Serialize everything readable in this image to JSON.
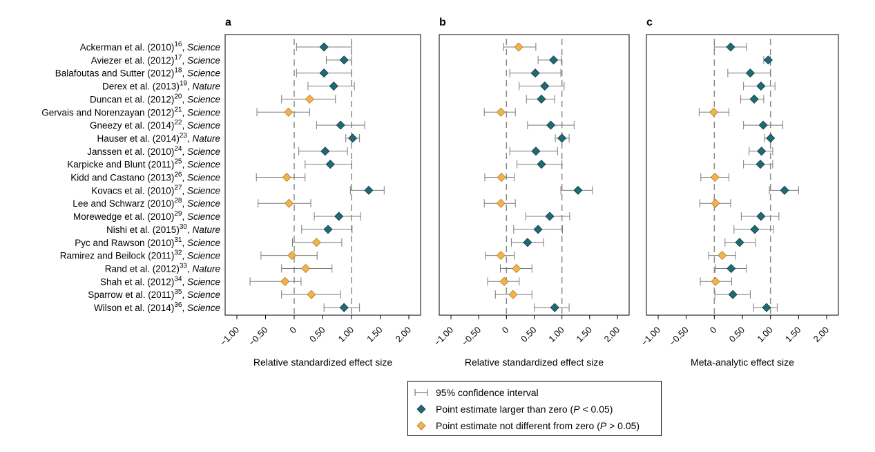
{
  "studies": [
    {
      "name": "Ackerman et al. (2010)",
      "ref": "16",
      "journal": "Science"
    },
    {
      "name": "Aviezer et al. (2012)",
      "ref": "17",
      "journal": "Science"
    },
    {
      "name": "Balafoutas and Sutter (2012)",
      "ref": "18",
      "journal": "Science"
    },
    {
      "name": "Derex et al. (2013)",
      "ref": "19",
      "journal": "Nature"
    },
    {
      "name": "Duncan et al. (2012)",
      "ref": "20",
      "journal": "Science"
    },
    {
      "name": "Gervais and Norenzayan (2012)",
      "ref": "21",
      "journal": "Science"
    },
    {
      "name": "Gneezy et al. (2014)",
      "ref": "22",
      "journal": "Science"
    },
    {
      "name": "Hauser et al. (2014)",
      "ref": "23",
      "journal": "Nature"
    },
    {
      "name": "Janssen et al. (2010)",
      "ref": "24",
      "journal": "Science"
    },
    {
      "name": "Karpicke and Blunt (2011)",
      "ref": "25",
      "journal": "Science"
    },
    {
      "name": "Kidd and Castano (2013)",
      "ref": "26",
      "journal": "Science"
    },
    {
      "name": "Kovacs et al. (2010)",
      "ref": "27",
      "journal": "Science"
    },
    {
      "name": "Lee and Schwarz (2010)",
      "ref": "28",
      "journal": "Science"
    },
    {
      "name": "Morewedge et al. (2010)",
      "ref": "29",
      "journal": "Science"
    },
    {
      "name": "Nishi et al. (2015)",
      "ref": "30",
      "journal": "Nature"
    },
    {
      "name": "Pyc and Rawson (2010)",
      "ref": "31",
      "journal": "Science"
    },
    {
      "name": "Ramirez and Beilock (2011)",
      "ref": "32",
      "journal": "Science"
    },
    {
      "name": "Rand et al. (2012)",
      "ref": "33",
      "journal": "Nature"
    },
    {
      "name": "Shah et al. (2012)",
      "ref": "34",
      "journal": "Science"
    },
    {
      "name": "Sparrow et al. (2011)",
      "ref": "35",
      "journal": "Science"
    },
    {
      "name": "Wilson et al. (2014)",
      "ref": "36",
      "journal": "Science"
    }
  ],
  "colors": {
    "significant": "#1f6b75",
    "nonsignificant": "#f2b24c",
    "ci": "#7a7a7a",
    "reference_line": "#8a8a8a"
  },
  "chart_data": [
    {
      "type": "scatter",
      "panel_label": "a",
      "xlabel": "Relative standardized effect size",
      "xlim": [
        -1.0,
        2.0
      ],
      "xticks": [
        -1.0,
        -0.5,
        0,
        0.5,
        1.0,
        1.5,
        2.0
      ],
      "xtick_labels": [
        "−1.00",
        "−0.50",
        "0",
        "0.50",
        "1.00",
        "1.50",
        "2.00"
      ],
      "reference_lines": [
        0,
        1
      ],
      "grid": false,
      "points": [
        {
          "est": 0.52,
          "lo": 0.04,
          "hi": 1.0,
          "sig": true
        },
        {
          "est": 0.87,
          "lo": 0.56,
          "hi": 1.0,
          "sig": true
        },
        {
          "est": 0.52,
          "lo": 0.04,
          "hi": 1.0,
          "sig": true
        },
        {
          "est": 0.69,
          "lo": 0.24,
          "hi": 1.05,
          "sig": true
        },
        {
          "est": 0.27,
          "lo": -0.22,
          "hi": 0.72,
          "sig": false
        },
        {
          "est": -0.1,
          "lo": -0.65,
          "hi": 0.27,
          "sig": false
        },
        {
          "est": 0.81,
          "lo": 0.39,
          "hi": 1.23,
          "sig": true
        },
        {
          "est": 1.02,
          "lo": 0.9,
          "hi": 1.14,
          "sig": true
        },
        {
          "est": 0.54,
          "lo": 0.08,
          "hi": 0.93,
          "sig": true
        },
        {
          "est": 0.63,
          "lo": 0.19,
          "hi": 1.0,
          "sig": true
        },
        {
          "est": -0.13,
          "lo": -0.66,
          "hi": 0.19,
          "sig": false
        },
        {
          "est": 1.3,
          "lo": 0.98,
          "hi": 1.57,
          "sig": true
        },
        {
          "est": -0.09,
          "lo": -0.63,
          "hi": 0.29,
          "sig": false
        },
        {
          "est": 0.78,
          "lo": 0.35,
          "hi": 1.16,
          "sig": true
        },
        {
          "est": 0.59,
          "lo": 0.13,
          "hi": 1.01,
          "sig": true
        },
        {
          "est": 0.39,
          "lo": -0.03,
          "hi": 0.83,
          "sig": false
        },
        {
          "est": -0.04,
          "lo": -0.58,
          "hi": 0.4,
          "sig": false
        },
        {
          "est": 0.2,
          "lo": -0.22,
          "hi": 0.66,
          "sig": false
        },
        {
          "est": -0.16,
          "lo": -0.77,
          "hi": 0.12,
          "sig": false
        },
        {
          "est": 0.3,
          "lo": -0.22,
          "hi": 0.81,
          "sig": false
        },
        {
          "est": 0.87,
          "lo": 0.52,
          "hi": 1.14,
          "sig": true
        }
      ]
    },
    {
      "type": "scatter",
      "panel_label": "b",
      "xlabel": "Relative standardized effect size",
      "xlim": [
        -1.0,
        2.0
      ],
      "xticks": [
        -1.0,
        -0.5,
        0,
        0.5,
        1.0,
        1.5,
        2.0
      ],
      "xtick_labels": [
        "−1.00",
        "−0.50",
        "0",
        "0.50",
        "1.00",
        "1.50",
        "2.00"
      ],
      "reference_lines": [
        0,
        1
      ],
      "grid": false,
      "points": [
        {
          "est": 0.22,
          "lo": -0.05,
          "hi": 0.53,
          "sig": false
        },
        {
          "est": 0.85,
          "lo": 0.57,
          "hi": 0.99,
          "sig": true
        },
        {
          "est": 0.52,
          "lo": 0.06,
          "hi": 0.98,
          "sig": true
        },
        {
          "est": 0.69,
          "lo": 0.23,
          "hi": 1.04,
          "sig": true
        },
        {
          "est": 0.63,
          "lo": 0.36,
          "hi": 0.87,
          "sig": true
        },
        {
          "est": -0.1,
          "lo": -0.4,
          "hi": 0.16,
          "sig": false
        },
        {
          "est": 0.8,
          "lo": 0.38,
          "hi": 1.22,
          "sig": true
        },
        {
          "est": 1.0,
          "lo": 0.88,
          "hi": 1.13,
          "sig": true
        },
        {
          "est": 0.53,
          "lo": 0.06,
          "hi": 0.92,
          "sig": true
        },
        {
          "est": 0.63,
          "lo": 0.19,
          "hi": 1.0,
          "sig": true
        },
        {
          "est": -0.09,
          "lo": -0.39,
          "hi": 0.14,
          "sig": false
        },
        {
          "est": 1.29,
          "lo": 0.98,
          "hi": 1.55,
          "sig": true
        },
        {
          "est": -0.1,
          "lo": -0.4,
          "hi": 0.16,
          "sig": false
        },
        {
          "est": 0.78,
          "lo": 0.35,
          "hi": 1.14,
          "sig": true
        },
        {
          "est": 0.57,
          "lo": 0.13,
          "hi": 1.01,
          "sig": true
        },
        {
          "est": 0.38,
          "lo": 0.09,
          "hi": 0.67,
          "sig": true
        },
        {
          "est": -0.1,
          "lo": -0.38,
          "hi": 0.14,
          "sig": false
        },
        {
          "est": 0.18,
          "lo": -0.11,
          "hi": 0.46,
          "sig": false
        },
        {
          "est": -0.04,
          "lo": -0.34,
          "hi": 0.23,
          "sig": false
        },
        {
          "est": 0.12,
          "lo": -0.2,
          "hi": 0.46,
          "sig": false
        },
        {
          "est": 0.87,
          "lo": 0.5,
          "hi": 1.13,
          "sig": true
        }
      ]
    },
    {
      "type": "scatter",
      "panel_label": "c",
      "xlabel": "Meta-analytic effect size",
      "xlim": [
        -1.0,
        2.0
      ],
      "xticks": [
        -1.0,
        -0.5,
        0,
        0.5,
        1.0,
        1.5,
        2.0
      ],
      "xtick_labels": [
        "−1.00",
        "−0.50",
        "0",
        "0.50",
        "1.00",
        "1.50",
        "2.00"
      ],
      "reference_lines": [
        0,
        1
      ],
      "grid": false,
      "points": [
        {
          "est": 0.29,
          "lo": 0.0,
          "hi": 0.57,
          "sig": true
        },
        {
          "est": 0.96,
          "lo": 0.88,
          "hi": 1.0,
          "sig": true
        },
        {
          "est": 0.64,
          "lo": 0.24,
          "hi": 1.0,
          "sig": true
        },
        {
          "est": 0.83,
          "lo": 0.52,
          "hi": 1.08,
          "sig": true
        },
        {
          "est": 0.71,
          "lo": 0.47,
          "hi": 0.88,
          "sig": true
        },
        {
          "est": -0.01,
          "lo": -0.27,
          "hi": 0.26,
          "sig": false
        },
        {
          "est": 0.87,
          "lo": 0.52,
          "hi": 1.22,
          "sig": true
        },
        {
          "est": 1.0,
          "lo": 0.89,
          "hi": 1.02,
          "sig": true
        },
        {
          "est": 0.84,
          "lo": 0.62,
          "hi": 1.04,
          "sig": true
        },
        {
          "est": 0.82,
          "lo": 0.52,
          "hi": 1.04,
          "sig": true
        },
        {
          "est": 0.01,
          "lo": -0.24,
          "hi": 0.26,
          "sig": false
        },
        {
          "est": 1.25,
          "lo": 0.98,
          "hi": 1.5,
          "sig": true
        },
        {
          "est": 0.02,
          "lo": -0.26,
          "hi": 0.29,
          "sig": false
        },
        {
          "est": 0.83,
          "lo": 0.48,
          "hi": 1.15,
          "sig": true
        },
        {
          "est": 0.72,
          "lo": 0.35,
          "hi": 1.05,
          "sig": true
        },
        {
          "est": 0.45,
          "lo": 0.19,
          "hi": 0.73,
          "sig": true
        },
        {
          "est": 0.14,
          "lo": -0.1,
          "hi": 0.38,
          "sig": false
        },
        {
          "est": 0.3,
          "lo": 0.02,
          "hi": 0.57,
          "sig": true
        },
        {
          "est": 0.02,
          "lo": -0.25,
          "hi": 0.31,
          "sig": false
        },
        {
          "est": 0.33,
          "lo": 0.01,
          "hi": 0.64,
          "sig": true
        },
        {
          "est": 0.93,
          "lo": 0.7,
          "hi": 1.12,
          "sig": true
        }
      ]
    }
  ],
  "legend": {
    "ci": "95% confidence interval",
    "sig_prefix": "Point estimate larger than zero (",
    "sig_p": "P",
    "sig_suffix": " < 0.05)",
    "nonsig_prefix": "Point estimate not different from zero (",
    "nonsig_p": "P",
    "nonsig_suffix": " > 0.05)"
  }
}
